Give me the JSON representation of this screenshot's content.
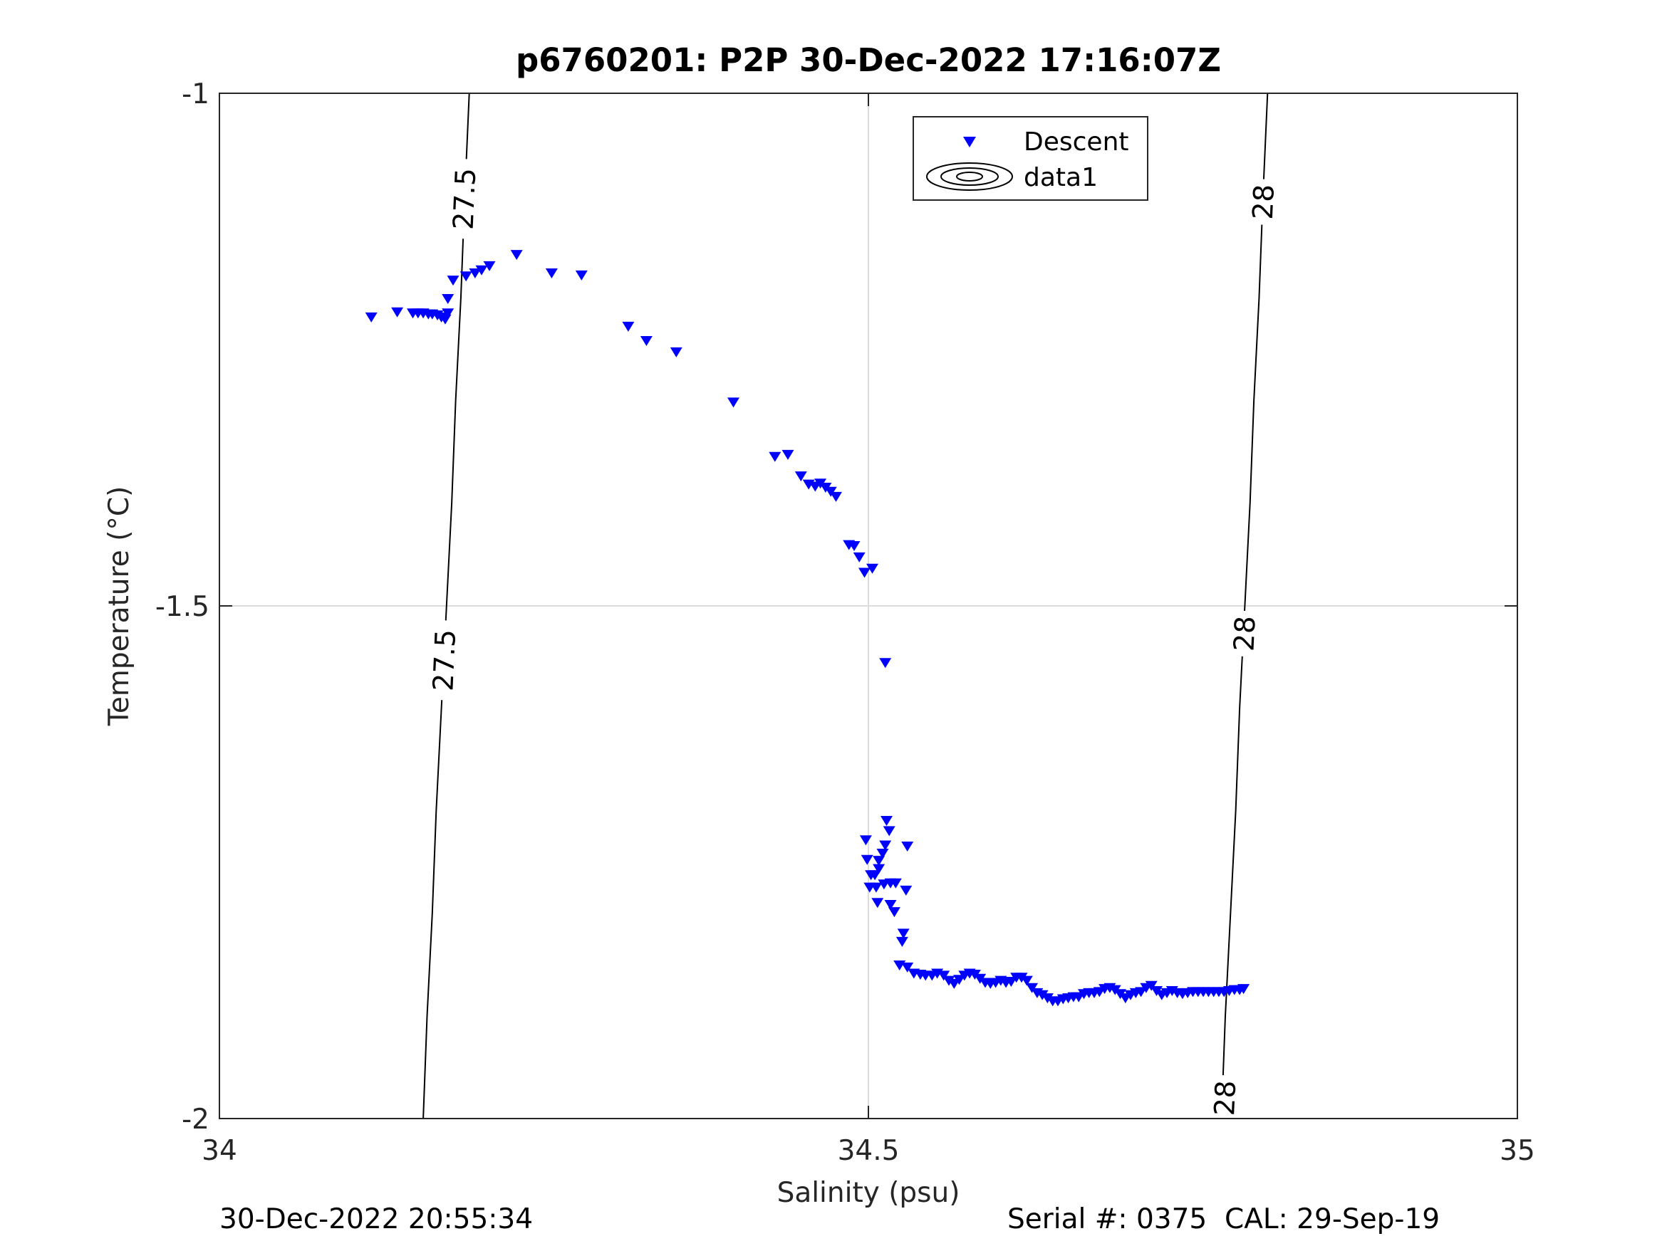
{
  "footer": {
    "timestamp": "30-Dec-2022 20:55:34",
    "serial": "Serial #: 0375  CAL: 29-Sep-19"
  },
  "chart_data": {
    "type": "scatter",
    "title": "p6760201: P2P 30-Dec-2022 17:16:07Z",
    "xlabel": "Salinity (psu)",
    "ylabel": "Temperature (°C)",
    "xlim": [
      34,
      35
    ],
    "ylim": [
      -2,
      -1
    ],
    "xticks": [
      34,
      34.5,
      35
    ],
    "xtick_labels": [
      "34",
      "34.5",
      "35"
    ],
    "yticks": [
      -2,
      -1.5,
      -1
    ],
    "ytick_labels": [
      "-2",
      "-1.5",
      "-1"
    ],
    "grid": true,
    "legend_position": "top-right",
    "legend": [
      {
        "name": "Descent",
        "marker": "triangle-down",
        "color": "#0000ff"
      },
      {
        "name": "data1",
        "marker": "contour",
        "color": "#000000"
      }
    ],
    "density_contours": [
      {
        "level": "27.5",
        "points": [
          [
            34.1925,
            -1.0
          ],
          [
            34.189,
            -1.1
          ],
          [
            34.186,
            -1.2
          ],
          [
            34.182,
            -1.3
          ],
          [
            34.179,
            -1.4
          ],
          [
            34.175,
            -1.5
          ],
          [
            34.171,
            -1.6
          ],
          [
            34.167,
            -1.7
          ],
          [
            34.164,
            -1.8
          ],
          [
            34.16,
            -1.9
          ],
          [
            34.157,
            -2.0
          ]
        ],
        "labels": [
          {
            "text": "27.5",
            "x": 34.1885,
            "y": -1.103
          },
          {
            "text": "27.5",
            "x": 34.173,
            "y": -1.553
          }
        ]
      },
      {
        "level": "28",
        "points": [
          [
            34.8075,
            -1.0
          ],
          [
            34.804,
            -1.1
          ],
          [
            34.801,
            -1.2
          ],
          [
            34.797,
            -1.3
          ],
          [
            34.794,
            -1.4
          ],
          [
            34.79,
            -1.5
          ],
          [
            34.786,
            -1.6
          ],
          [
            34.783,
            -1.7
          ],
          [
            34.779,
            -1.8
          ],
          [
            34.775,
            -1.9
          ],
          [
            34.772,
            -2.0
          ]
        ],
        "labels": [
          {
            "text": "28",
            "x": 34.804,
            "y": -1.106
          },
          {
            "text": "28",
            "x": 34.7895,
            "y": -1.527
          },
          {
            "text": "28",
            "x": 34.7745,
            "y": -1.98
          }
        ]
      }
    ],
    "series": [
      {
        "name": "Descent",
        "color": "#0000ff",
        "marker": "triangle-down",
        "points": [
          [
            34.117,
            -1.218
          ],
          [
            34.137,
            -1.213
          ],
          [
            34.149,
            -1.214
          ],
          [
            34.153,
            -1.214
          ],
          [
            34.157,
            -1.214
          ],
          [
            34.161,
            -1.215
          ],
          [
            34.164,
            -1.215
          ],
          [
            34.168,
            -1.216
          ],
          [
            34.171,
            -1.218
          ],
          [
            34.174,
            -1.22
          ],
          [
            34.176,
            -1.214
          ],
          [
            34.176,
            -1.2
          ],
          [
            34.18,
            -1.182
          ],
          [
            34.19,
            -1.178
          ],
          [
            34.197,
            -1.175
          ],
          [
            34.202,
            -1.172
          ],
          [
            34.208,
            -1.168
          ],
          [
            34.229,
            -1.157
          ],
          [
            34.256,
            -1.175
          ],
          [
            34.279,
            -1.177
          ],
          [
            34.315,
            -1.227
          ],
          [
            34.329,
            -1.241
          ],
          [
            34.352,
            -1.252
          ],
          [
            34.396,
            -1.301
          ],
          [
            34.428,
            -1.354
          ],
          [
            34.438,
            -1.352
          ],
          [
            34.448,
            -1.373
          ],
          [
            34.454,
            -1.381
          ],
          [
            34.459,
            -1.383
          ],
          [
            34.463,
            -1.38
          ],
          [
            34.467,
            -1.384
          ],
          [
            34.471,
            -1.388
          ],
          [
            34.475,
            -1.393
          ],
          [
            34.485,
            -1.44
          ],
          [
            34.489,
            -1.441
          ],
          [
            34.493,
            -1.452
          ],
          [
            34.497,
            -1.467
          ],
          [
            34.503,
            -1.463
          ],
          [
            34.513,
            -1.555
          ],
          [
            34.498,
            -1.728
          ],
          [
            34.499,
            -1.747
          ],
          [
            34.502,
            -1.762
          ],
          [
            34.505,
            -1.762
          ],
          [
            34.508,
            -1.756
          ],
          [
            34.511,
            -1.741
          ],
          [
            34.514,
            -1.709
          ],
          [
            34.516,
            -1.719
          ],
          [
            34.513,
            -1.733
          ],
          [
            34.508,
            -1.748
          ],
          [
            34.512,
            -1.771
          ],
          [
            34.517,
            -1.77
          ],
          [
            34.521,
            -1.77
          ],
          [
            34.53,
            -1.734
          ],
          [
            34.52,
            -1.798
          ],
          [
            34.507,
            -1.789
          ],
          [
            34.501,
            -1.774
          ],
          [
            34.506,
            -1.774
          ],
          [
            34.517,
            -1.791
          ],
          [
            34.529,
            -1.777
          ],
          [
            34.527,
            -1.819
          ],
          [
            34.526,
            -1.827
          ],
          [
            34.524,
            -1.85
          ],
          [
            34.53,
            -1.852
          ],
          [
            34.535,
            -1.858
          ],
          [
            34.54,
            -1.859
          ],
          [
            34.544,
            -1.86
          ],
          [
            34.549,
            -1.86
          ],
          [
            34.553,
            -1.858
          ],
          [
            34.558,
            -1.86
          ],
          [
            34.562,
            -1.865
          ],
          [
            34.566,
            -1.868
          ],
          [
            34.57,
            -1.864
          ],
          [
            34.574,
            -1.86
          ],
          [
            34.578,
            -1.858
          ],
          [
            34.582,
            -1.859
          ],
          [
            34.586,
            -1.863
          ],
          [
            34.59,
            -1.867
          ],
          [
            34.594,
            -1.868
          ],
          [
            34.598,
            -1.867
          ],
          [
            34.602,
            -1.865
          ],
          [
            34.606,
            -1.867
          ],
          [
            34.61,
            -1.866
          ],
          [
            34.614,
            -1.862
          ],
          [
            34.618,
            -1.862
          ],
          [
            34.622,
            -1.865
          ],
          [
            34.626,
            -1.872
          ],
          [
            34.63,
            -1.877
          ],
          [
            34.634,
            -1.879
          ],
          [
            34.638,
            -1.882
          ],
          [
            34.642,
            -1.885
          ],
          [
            34.646,
            -1.885
          ],
          [
            34.65,
            -1.883
          ],
          [
            34.654,
            -1.882
          ],
          [
            34.658,
            -1.881
          ],
          [
            34.662,
            -1.881
          ],
          [
            34.666,
            -1.878
          ],
          [
            34.67,
            -1.877
          ],
          [
            34.674,
            -1.877
          ],
          [
            34.678,
            -1.876
          ],
          [
            34.682,
            -1.873
          ],
          [
            34.686,
            -1.872
          ],
          [
            34.69,
            -1.874
          ],
          [
            34.694,
            -1.878
          ],
          [
            34.698,
            -1.882
          ],
          [
            34.702,
            -1.879
          ],
          [
            34.706,
            -1.877
          ],
          [
            34.71,
            -1.876
          ],
          [
            34.714,
            -1.872
          ],
          [
            34.718,
            -1.87
          ],
          [
            34.722,
            -1.875
          ],
          [
            34.726,
            -1.879
          ],
          [
            34.73,
            -1.877
          ],
          [
            34.734,
            -1.875
          ],
          [
            34.738,
            -1.877
          ],
          [
            34.742,
            -1.878
          ],
          [
            34.746,
            -1.877
          ],
          [
            34.75,
            -1.876
          ],
          [
            34.754,
            -1.876
          ],
          [
            34.758,
            -1.876
          ],
          [
            34.762,
            -1.876
          ],
          [
            34.766,
            -1.876
          ],
          [
            34.77,
            -1.876
          ],
          [
            34.774,
            -1.876
          ],
          [
            34.778,
            -1.875
          ],
          [
            34.782,
            -1.874
          ],
          [
            34.786,
            -1.874
          ],
          [
            34.789,
            -1.873
          ]
        ]
      }
    ]
  }
}
